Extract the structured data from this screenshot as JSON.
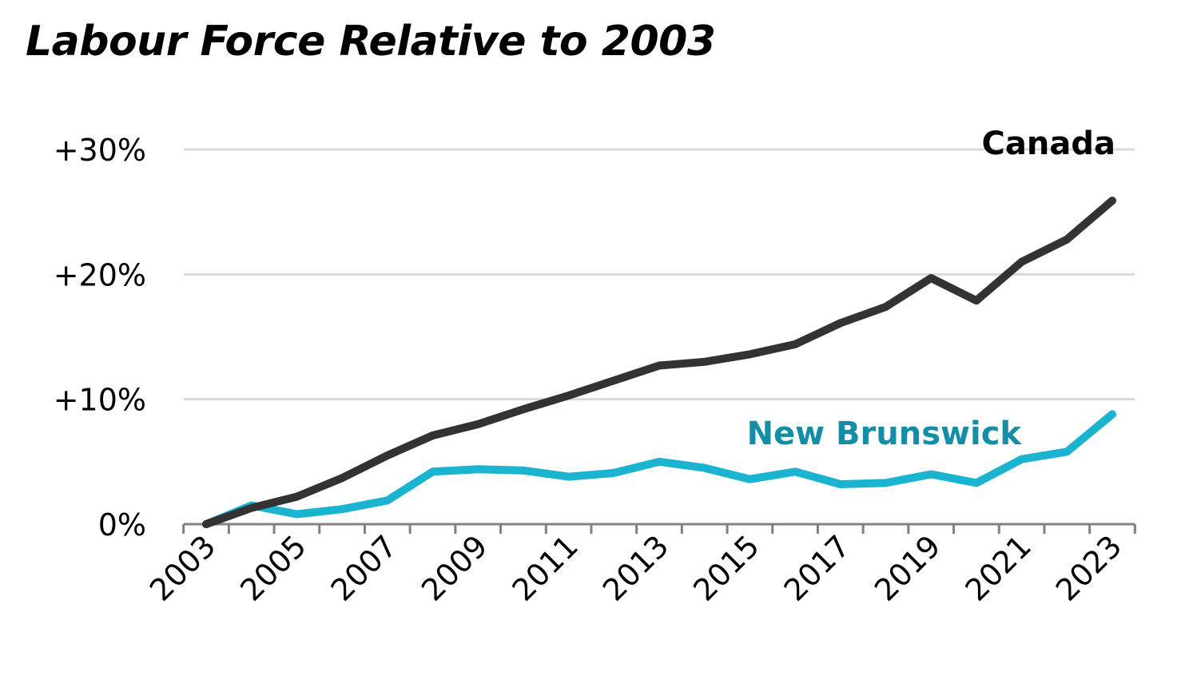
{
  "chart_data": {
    "type": "line",
    "title": "Labour Force Relative to 2003",
    "xlabel": "",
    "ylabel": "",
    "x": [
      2003,
      2004,
      2005,
      2006,
      2007,
      2008,
      2009,
      2010,
      2011,
      2012,
      2013,
      2014,
      2015,
      2016,
      2017,
      2018,
      2019,
      2020,
      2021,
      2022,
      2023
    ],
    "x_tick_labels": [
      "2003",
      "2005",
      "2007",
      "2009",
      "2011",
      "2013",
      "2015",
      "2017",
      "2019",
      "2021",
      "2023"
    ],
    "y_ticks": [
      0,
      10,
      20,
      30
    ],
    "y_tick_labels": [
      "0%",
      "+10%",
      "+20%",
      "+30%"
    ],
    "ylim": [
      0,
      30
    ],
    "grid": true,
    "series": [
      {
        "name": "Canada",
        "color": "#333333",
        "label_color": "#000000",
        "values": [
          0.0,
          1.3,
          2.2,
          3.7,
          5.5,
          7.1,
          8.0,
          9.2,
          10.3,
          11.5,
          12.7,
          13.0,
          13.6,
          14.4,
          16.1,
          17.4,
          19.7,
          17.9,
          21.0,
          22.8,
          25.9
        ]
      },
      {
        "name": "New Brunswick",
        "color": "#1ab3d0",
        "label_color": "#138ea6",
        "values": [
          0.0,
          1.5,
          0.8,
          1.2,
          1.9,
          4.2,
          4.4,
          4.3,
          3.8,
          4.1,
          5.0,
          4.5,
          3.6,
          4.2,
          3.2,
          3.3,
          4.0,
          3.3,
          5.2,
          5.8,
          8.8
        ]
      }
    ]
  }
}
